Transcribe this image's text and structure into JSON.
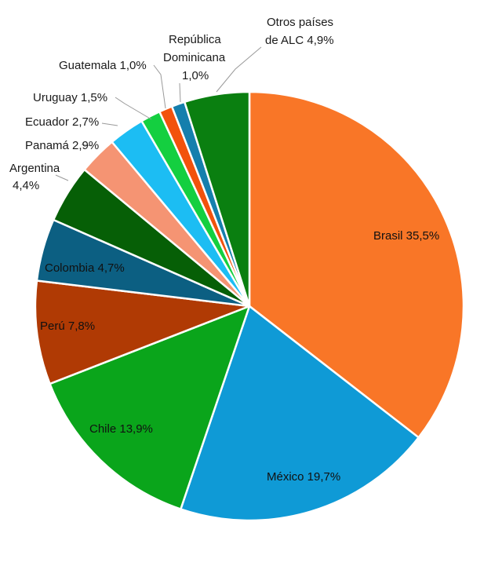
{
  "chart_data": {
    "type": "pie",
    "title": "",
    "slices": [
      {
        "name": "Brasil",
        "value_label": "35,5%",
        "value": 35.5,
        "color": "#f97627"
      },
      {
        "name": "México",
        "value_label": "19,7%",
        "value": 19.7,
        "color": "#0f9ad6"
      },
      {
        "name": "Chile",
        "value_label": "13,9%",
        "value": 13.9,
        "color": "#0aa51b"
      },
      {
        "name": "Perú",
        "value_label": "7,8%",
        "value": 7.8,
        "color": "#b03a04"
      },
      {
        "name": "Colombia",
        "value_label": "4,7%",
        "value": 4.7,
        "color": "#0c5f82"
      },
      {
        "name": "Argentina",
        "value_label": "4,4%",
        "value": 4.4,
        "color": "#065f06"
      },
      {
        "name": "Panamá",
        "value_label": "2,9%",
        "value": 2.9,
        "color": "#f59473"
      },
      {
        "name": "Ecuador",
        "value_label": "2,7%",
        "value": 2.7,
        "color": "#1cbdf3"
      },
      {
        "name": "Uruguay",
        "value_label": "1,5%",
        "value": 1.5,
        "color": "#14cf40"
      },
      {
        "name": "Guatemala",
        "value_label": "1,0%",
        "value": 1.0,
        "color": "#f2520c"
      },
      {
        "name": "República Dominicana",
        "value_label": "1,0%",
        "value": 1.0,
        "color": "#157fad"
      },
      {
        "name": "Otros países de ALC",
        "value_label": "4,9%",
        "value": 4.9,
        "color": "#0a7f10"
      }
    ],
    "label_lines": {
      "brasil": "Brasil 35,5%",
      "mexico": "México 19,7%",
      "chile": "Chile 13,9%",
      "peru": "Perú 7,8%",
      "colombia": "Colombia 4,7%",
      "argentina_1": "Argentina",
      "argentina_2": "4,4%",
      "panama": "Panamá 2,9%",
      "ecuador": "Ecuador 2,7%",
      "uruguay": "Uruguay 1,5%",
      "guatemala": "Guatemala 1,0%",
      "rd_1": "República",
      "rd_2": "Dominicana",
      "rd_3": "1,0%",
      "otros_1": "Otros países",
      "otros_2": "de ALC 4,9%"
    }
  }
}
